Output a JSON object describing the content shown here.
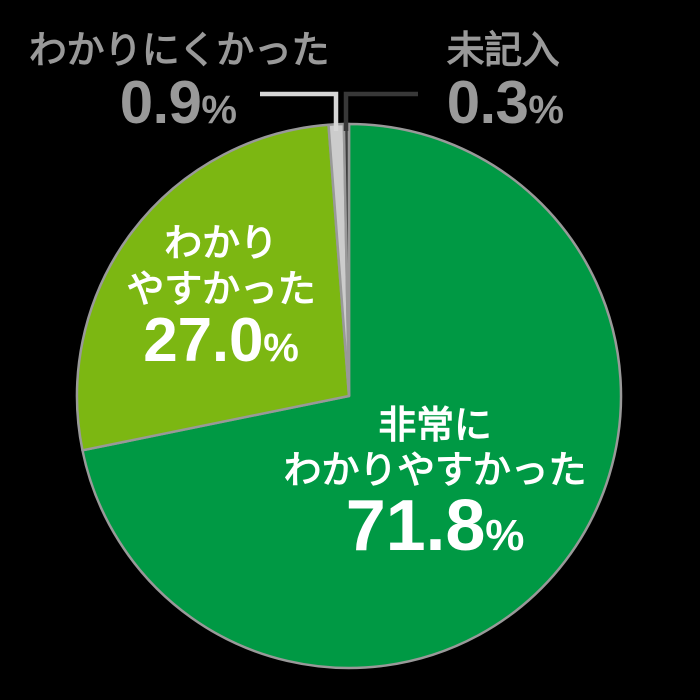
{
  "chart_data": {
    "type": "pie",
    "title": "",
    "unit": "%",
    "direction": "clockwise",
    "start_angle_deg_from_top": 0,
    "outline_color": "#999999",
    "background_color": "#000000",
    "slices": [
      {
        "label": "非常にわかりやすかった",
        "value": 71.8,
        "color": "#009944",
        "label_color": "#ffffff",
        "label_position": "inside"
      },
      {
        "label": "わかりやすかった",
        "value": 27.0,
        "color": "#7CB712",
        "label_color": "#ffffff",
        "label_position": "inside"
      },
      {
        "label": "わかりにくかった",
        "value": 0.9,
        "color": "#CCCCCC",
        "label_color": "#999999",
        "label_position": "outside-top-left"
      },
      {
        "label": "未記入",
        "value": 0.3,
        "color": "#3E3E3E",
        "label_color": "#999999",
        "label_position": "outside-top-right"
      }
    ],
    "leader_lines": [
      {
        "for": "わかりにくかった",
        "color": "#D6D6D6"
      },
      {
        "for": "未記入",
        "color": "#383838"
      }
    ]
  },
  "labels": {
    "very_easy": {
      "line1": "非常に",
      "line2": "わかりやすかった",
      "value": "71.8",
      "percent": "%"
    },
    "easy": {
      "line1": "わかり",
      "line2": "やすかった",
      "value": "27.0",
      "percent": "%"
    },
    "hard": {
      "name": "わかりにくかった",
      "value": "0.9",
      "percent": "%"
    },
    "blank": {
      "name": "未記入",
      "value": "0.3",
      "percent": "%"
    }
  }
}
